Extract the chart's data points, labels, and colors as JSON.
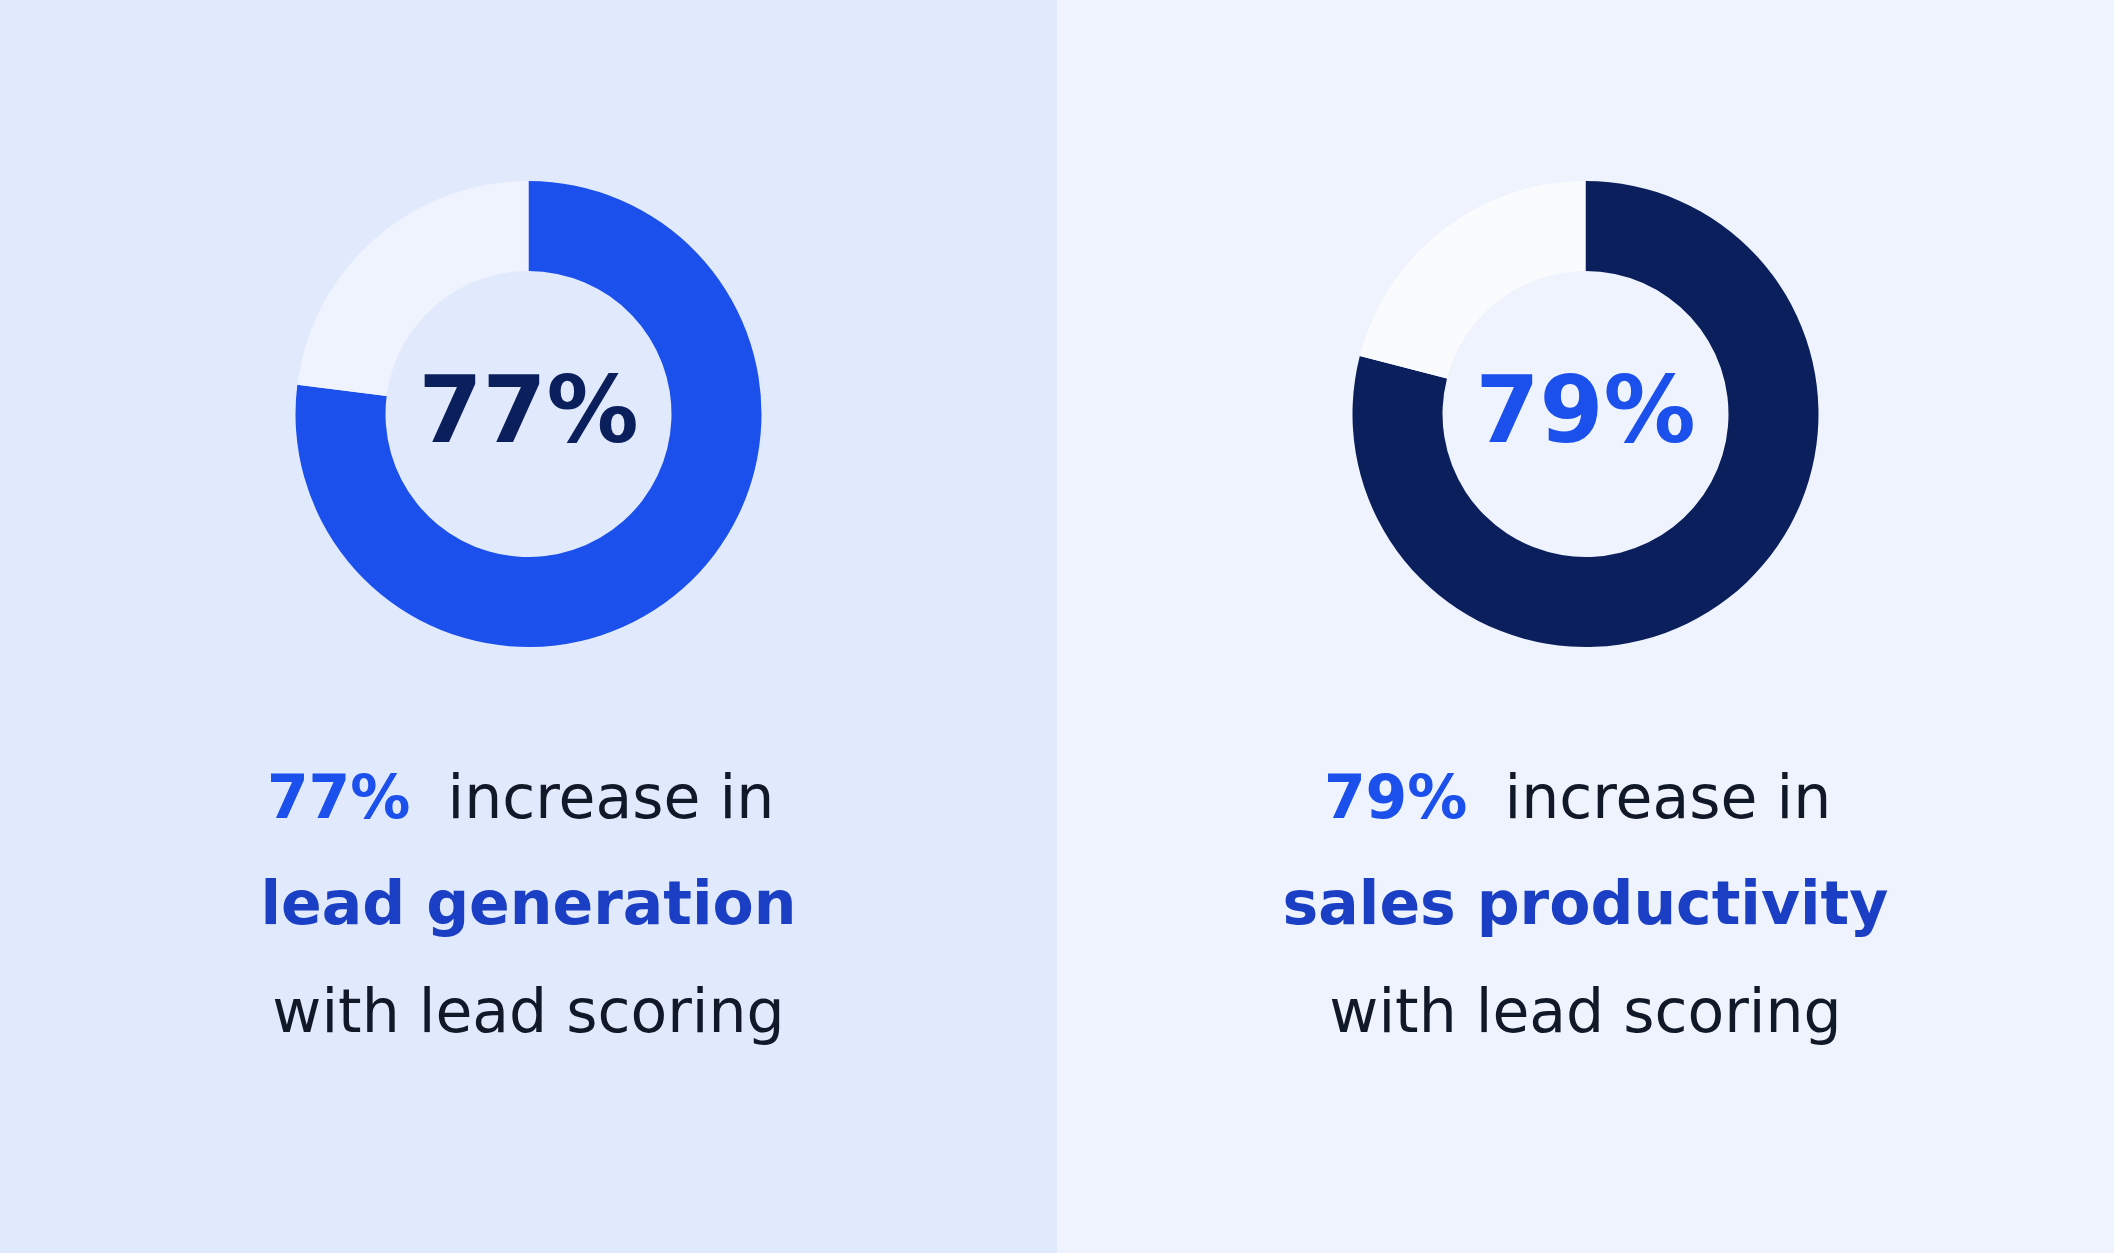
{
  "chart_data": [
    {
      "type": "donut",
      "categories": [
        null,
        null
      ],
      "values": [
        77,
        23
      ],
      "colors": [
        "#1b50ed",
        "#eef3fd"
      ],
      "value_labels": [
        "77%",
        null
      ],
      "annotations": [
        "77%",
        "increase in",
        "lead generation",
        "with lead scoring"
      ]
    },
    {
      "type": "donut",
      "categories": [
        null,
        null
      ],
      "values": [
        79,
        21
      ],
      "colors": [
        "#0a1f5c",
        "#f9fbfd"
      ],
      "value_labels": [
        "79%",
        null
      ],
      "annotations": [
        "79%",
        "increase in",
        "sales productivity",
        "with lead scoring"
      ]
    }
  ]
}
